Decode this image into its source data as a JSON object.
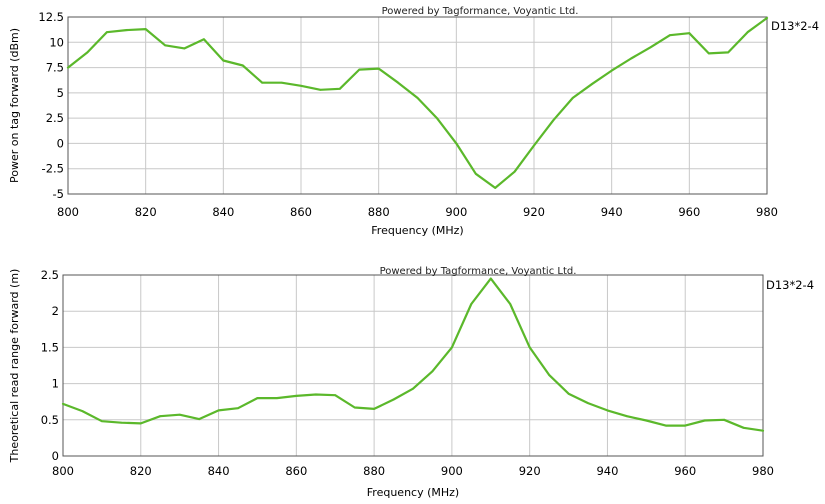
{
  "colors": {
    "series": "#5bb82b",
    "grid": "#c8c8c8",
    "frame": "#555555"
  },
  "chart_data": [
    {
      "type": "line",
      "title": "",
      "watermark": "Powered by Tagformance, Voyantic Ltd.",
      "xlabel": "Frequency (MHz)",
      "ylabel": "Power on tag forward (dBm)",
      "xlim": [
        800,
        980
      ],
      "ylim": [
        -5,
        12.5
      ],
      "xticks": [
        800,
        820,
        840,
        860,
        880,
        900,
        920,
        940,
        960,
        980
      ],
      "yticks": [
        -5,
        -2.5,
        0,
        2.5,
        5,
        7.5,
        10,
        12.5
      ],
      "ytick_labels": [
        "-5",
        "-2.5",
        "0",
        "2.5",
        "5",
        "7.5",
        "10",
        "12.5"
      ],
      "grid": true,
      "legend_position": "right",
      "series": [
        {
          "name": "D13*2-4",
          "x": [
            800,
            805,
            810,
            815,
            820,
            825,
            830,
            835,
            840,
            845,
            850,
            855,
            860,
            865,
            870,
            875,
            880,
            885,
            890,
            895,
            900,
            905,
            910,
            915,
            920,
            925,
            930,
            935,
            940,
            945,
            950,
            955,
            960,
            965,
            970,
            975,
            980
          ],
          "y": [
            7.5,
            9,
            11,
            11.2,
            11.3,
            9.7,
            9.4,
            10.3,
            8.2,
            7.7,
            6,
            6,
            5.7,
            5.3,
            5.4,
            7.3,
            7.4,
            6,
            4.5,
            2.5,
            0,
            -3,
            -4.4,
            -2.8,
            -0.2,
            2.3,
            4.5,
            5.9,
            7.2,
            8.4,
            9.5,
            10.7,
            10.9,
            8.9,
            9,
            11,
            12.4
          ]
        }
      ]
    },
    {
      "type": "line",
      "title": "",
      "watermark": "Powered by Tagformance, Voyantic Ltd.",
      "xlabel": "Frequency (MHz)",
      "ylabel": "Theoretical read range forward (m)",
      "xlim": [
        800,
        980
      ],
      "ylim": [
        0,
        2.5
      ],
      "xticks": [
        800,
        820,
        840,
        860,
        880,
        900,
        920,
        940,
        960,
        980
      ],
      "yticks": [
        0,
        0.5,
        1,
        1.5,
        2,
        2.5
      ],
      "ytick_labels": [
        "0",
        "0.5",
        "1",
        "1.5",
        "2",
        "2.5"
      ],
      "grid": true,
      "legend_position": "right",
      "series": [
        {
          "name": "D13*2-4",
          "x": [
            800,
            805,
            810,
            815,
            820,
            825,
            830,
            835,
            840,
            845,
            850,
            855,
            860,
            865,
            870,
            875,
            880,
            885,
            890,
            895,
            900,
            905,
            910,
            915,
            920,
            925,
            930,
            935,
            940,
            945,
            950,
            955,
            960,
            965,
            970,
            975,
            980
          ],
          "y": [
            0.72,
            0.62,
            0.48,
            0.46,
            0.45,
            0.55,
            0.57,
            0.51,
            0.63,
            0.66,
            0.8,
            0.8,
            0.83,
            0.85,
            0.84,
            0.67,
            0.65,
            0.78,
            0.93,
            1.17,
            1.5,
            2.1,
            2.45,
            2.1,
            1.5,
            1.12,
            0.86,
            0.73,
            0.63,
            0.55,
            0.49,
            0.42,
            0.42,
            0.49,
            0.5,
            0.39,
            0.35
          ]
        }
      ]
    }
  ]
}
